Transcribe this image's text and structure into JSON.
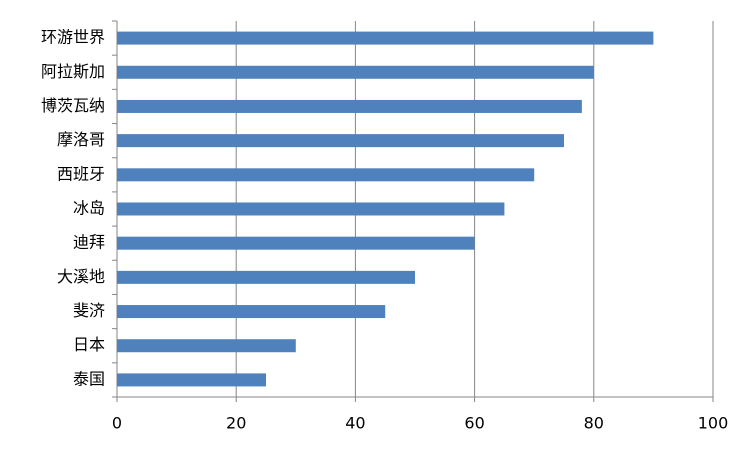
{
  "chart_data": {
    "type": "bar",
    "orientation": "horizontal",
    "categories": [
      "环游世界",
      "阿拉斯加",
      "博茨瓦纳",
      "摩洛哥",
      "西班牙",
      "冰岛",
      "迪拜",
      "大溪地",
      "斐济",
      "日本",
      "泰国"
    ],
    "values": [
      90,
      80,
      78,
      75,
      70,
      65,
      60,
      50,
      45,
      30,
      25
    ],
    "color": "#4f81bd",
    "xlim": [
      0,
      100
    ],
    "xticks": [
      0,
      20,
      40,
      60,
      80,
      100
    ],
    "grid": true
  }
}
